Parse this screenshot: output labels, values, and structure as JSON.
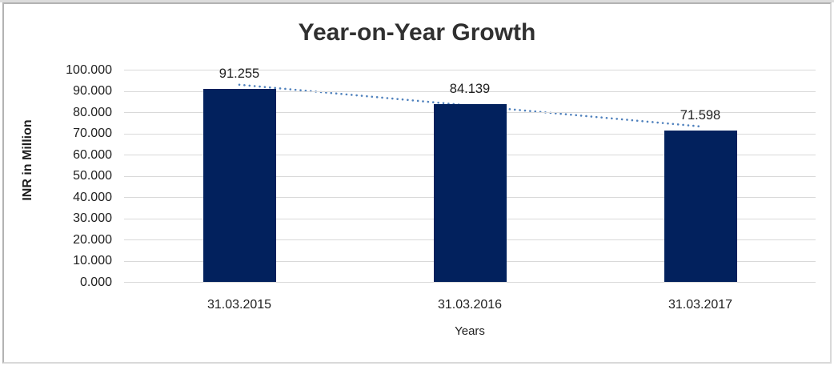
{
  "chart_data": {
    "type": "bar",
    "title": "Year-on-Year Growth",
    "ylabel": "INR in Million",
    "xlabel": "Years",
    "categories": [
      "31.03.2015",
      "31.03.2016",
      "31.03.2017"
    ],
    "values": [
      91.255,
      84.139,
      71.598
    ],
    "value_labels": [
      "91.255",
      "84.139",
      "71.598"
    ],
    "ylim": [
      0,
      100
    ],
    "ytick_step": 10,
    "ytick_labels": [
      "0.000",
      "10.000",
      "20.000",
      "30.000",
      "40.000",
      "50.000",
      "60.000",
      "70.000",
      "80.000",
      "90.000",
      "100.000"
    ],
    "grid": true,
    "legend": false,
    "trendline": {
      "type": "linear",
      "style": "dotted"
    },
    "colors": {
      "bar": "#02215D",
      "trendline": "#4F81BD",
      "gridline": "#D9D9D9",
      "axis_text": "#1F1F1F",
      "title_text": "#303030"
    }
  }
}
